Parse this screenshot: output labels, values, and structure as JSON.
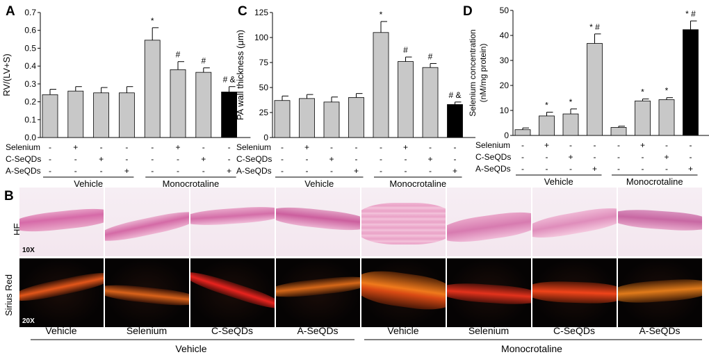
{
  "figure": {
    "panel_labels": [
      "A",
      "B",
      "C",
      "D"
    ],
    "treatment_rows": [
      "Selenium",
      "C-SeQDs",
      "A-SeQDs"
    ],
    "treatment_signs": [
      [
        "-",
        "+",
        "-",
        "-",
        "-",
        "+",
        "-",
        "-"
      ],
      [
        "-",
        "-",
        "+",
        "-",
        "-",
        "-",
        "+",
        "-"
      ],
      [
        "-",
        "-",
        "-",
        "+",
        "-",
        "-",
        "-",
        "+"
      ]
    ],
    "group_labels": [
      "Vehicle",
      "Monocrotaline"
    ],
    "histology": {
      "row_labels": [
        "HE",
        "Sirius Red"
      ],
      "magnifications": [
        "10X",
        "20X"
      ],
      "column_labels": [
        "Vehicle",
        "Selenium",
        "C-SeQDs",
        "A-SeQDs",
        "Vehicle",
        "Selenium",
        "C-SeQDs",
        "A-SeQDs"
      ],
      "group_labels": [
        "Vehicle",
        "Monocrotaline"
      ]
    }
  },
  "chart_data": [
    {
      "panel": "A",
      "type": "bar",
      "categories": [
        "Vehicle",
        "Selenium",
        "C-SeQDs",
        "A-SeQDs",
        "MCT",
        "MCT+Selenium",
        "MCT+C-SeQDs",
        "MCT+A-SeQDs"
      ],
      "values": [
        0.24,
        0.26,
        0.25,
        0.25,
        0.545,
        0.38,
        0.365,
        0.255
      ],
      "errors": [
        0.03,
        0.025,
        0.03,
        0.035,
        0.07,
        0.045,
        0.025,
        0.03
      ],
      "annotations": [
        "",
        "",
        "",
        "",
        "*",
        "#",
        "#",
        "# &"
      ],
      "bar_colors": [
        "#c8c8c8",
        "#c8c8c8",
        "#c8c8c8",
        "#c8c8c8",
        "#c8c8c8",
        "#c8c8c8",
        "#c8c8c8",
        "#000000"
      ],
      "ylabel": "RV/(LV+S)",
      "ylim": [
        0,
        0.7
      ],
      "yticks": [
        0.0,
        0.1,
        0.2,
        0.3,
        0.4,
        0.5,
        0.6,
        0.7
      ],
      "ytick_labels": [
        "0.0",
        "0.1",
        "0.2",
        "0.3",
        "0.4",
        "0.5",
        "0.6",
        "0.7"
      ]
    },
    {
      "panel": "C",
      "type": "bar",
      "categories": [
        "Vehicle",
        "Selenium",
        "C-SeQDs",
        "A-SeQDs",
        "MCT",
        "MCT+Selenium",
        "MCT+C-SeQDs",
        "MCT+A-SeQDs"
      ],
      "values": [
        37,
        39,
        35.5,
        40,
        105,
        76,
        70,
        33
      ],
      "errors": [
        4.5,
        4,
        5,
        4,
        11,
        4.5,
        4,
        2.5
      ],
      "annotations": [
        "",
        "",
        "",
        "",
        "*",
        "#",
        "#",
        "# &"
      ],
      "bar_colors": [
        "#c8c8c8",
        "#c8c8c8",
        "#c8c8c8",
        "#c8c8c8",
        "#c8c8c8",
        "#c8c8c8",
        "#c8c8c8",
        "#000000"
      ],
      "ylabel": "PA wall thickness (μm)",
      "ylim": [
        0,
        125
      ],
      "yticks": [
        0,
        25,
        50,
        75,
        100,
        125
      ],
      "ytick_labels": [
        "0",
        "25",
        "50",
        "75",
        "100",
        "125"
      ]
    },
    {
      "panel": "D",
      "type": "bar",
      "categories": [
        "Vehicle",
        "Selenium",
        "C-SeQDs",
        "A-SeQDs",
        "MCT",
        "MCT+Selenium",
        "MCT+C-SeQDs",
        "MCT+A-SeQDs"
      ],
      "values": [
        2.3,
        7.8,
        8.6,
        36.8,
        3.2,
        13.8,
        14.3,
        42.3
      ],
      "errors": [
        0.7,
        1.5,
        2.0,
        3.8,
        0.5,
        0.8,
        0.8,
        3.5
      ],
      "annotations": [
        "",
        "*",
        "*",
        "* #",
        "",
        "*",
        "*",
        "* #"
      ],
      "bar_colors": [
        "#c8c8c8",
        "#c8c8c8",
        "#c8c8c8",
        "#c8c8c8",
        "#c8c8c8",
        "#c8c8c8",
        "#c8c8c8",
        "#000000"
      ],
      "ylabel": "Selenium concentration (nM/mg protein)",
      "ylim": [
        0,
        50
      ],
      "yticks": [
        0,
        10,
        20,
        30,
        40,
        50
      ],
      "ytick_labels": [
        "0",
        "10",
        "20",
        "30",
        "40",
        "50"
      ]
    }
  ]
}
